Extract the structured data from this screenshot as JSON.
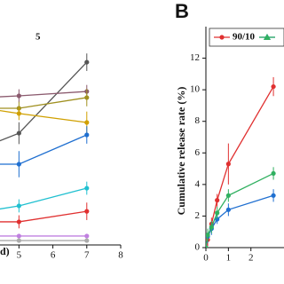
{
  "chart_data": [
    {
      "type": "line",
      "legend_fragment": "5",
      "x_label_fragment": "d)",
      "xlim": [
        4.42,
        8
      ],
      "ylim": [
        0,
        100
      ],
      "xticks": [
        5,
        6,
        7,
        8
      ],
      "x": [
        4,
        5,
        7
      ],
      "series": [
        {
          "color": "#555555",
          "values": [
            45,
            51.2,
            83.7
          ],
          "errors": [
            4,
            5,
            4
          ]
        },
        {
          "color": "#8b5a6e",
          "values": [
            67.5,
            68.3,
            70.3
          ],
          "errors": [
            3,
            3,
            3
          ]
        },
        {
          "color": "#a09020",
          "values": [
            62.6,
            62.6,
            67.5
          ],
          "errors": [
            3,
            3,
            4
          ]
        },
        {
          "color": "#d0a000",
          "values": [
            62.6,
            60.2,
            56.1
          ],
          "errors": [
            3,
            3,
            5
          ]
        },
        {
          "color": "#1f6fd0",
          "values": [
            37,
            37,
            50.4
          ],
          "errors": [
            4,
            6,
            4
          ]
        },
        {
          "color": "#20c0d0",
          "values": [
            15.4,
            17.9,
            26
          ],
          "errors": [
            2,
            3,
            3
          ]
        },
        {
          "color": "#e03030",
          "values": [
            10.6,
            10.6,
            15.4
          ],
          "errors": [
            2,
            3,
            4
          ]
        },
        {
          "color": "#c080e0",
          "values": [
            4.1,
            4.1,
            4.1
          ],
          "errors": [
            1,
            1,
            1
          ]
        },
        {
          "color": "#aaaaaa",
          "values": [
            2,
            2,
            2
          ],
          "errors": [
            0.5,
            0.5,
            0.5
          ]
        }
      ]
    },
    {
      "type": "line",
      "panel_label": "B",
      "y_label": "Cumulative release rate (%)",
      "xlim": [
        0,
        3.47
      ],
      "ylim": [
        0,
        14
      ],
      "xticks": [
        0,
        1,
        2
      ],
      "yticks": [
        0,
        2,
        4,
        6,
        8,
        10,
        12
      ],
      "x": [
        0,
        0.08,
        0.25,
        0.5,
        1,
        3
      ],
      "series": [
        {
          "name": "90/10",
          "color": "#e03030",
          "values": [
            0,
            0.5,
            1.5,
            3,
            5.3,
            10.2
          ],
          "errors": [
            0.2,
            0.4,
            0.4,
            0.4,
            1.3,
            0.6
          ]
        },
        {
          "color": "#1f6fd0",
          "values": [
            0,
            0.7,
            1.2,
            1.8,
            2.4,
            3.3
          ],
          "errors": [
            0.2,
            0.4,
            0.4,
            0.3,
            0.4,
            0.4
          ]
        },
        {
          "color": "#30b060",
          "values": [
            0,
            0.8,
            1.3,
            2.2,
            3.3,
            4.7
          ],
          "errors": [
            0.2,
            0.4,
            0.4,
            0.4,
            0.4,
            0.4
          ]
        }
      ]
    }
  ]
}
